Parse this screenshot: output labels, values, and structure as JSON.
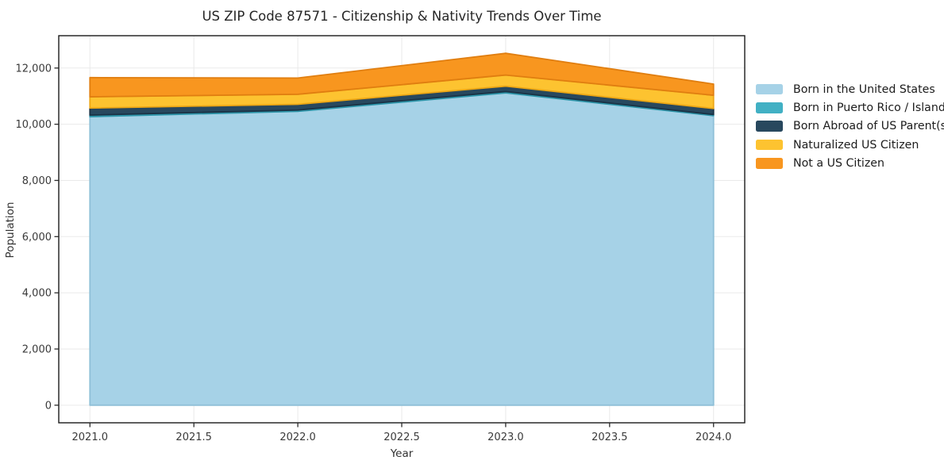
{
  "window": {
    "title": "US ZIP Code 87571 - Citizenship & Nativity Trends Over Time"
  },
  "chart_data": {
    "type": "area",
    "stacked": true,
    "title": "US ZIP Code 87571 - Citizenship & Nativity Trends Over Time",
    "xlabel": "Year",
    "ylabel": "Population",
    "x": [
      2021,
      2022,
      2023,
      2024
    ],
    "series": [
      {
        "name": "Born in the United States",
        "color": "#a6d2e7",
        "edge_color": "#8fc0d8",
        "values": [
          10270,
          10460,
          11115,
          10305
        ]
      },
      {
        "name": "Born in Puerto Rico / Islands",
        "color": "#41b0c4",
        "edge_color": "#2d95a9",
        "values": [
          55,
          45,
          50,
          40
        ]
      },
      {
        "name": "Born Abroad of US Parent(s)",
        "color": "#28485e",
        "edge_color": "#1a3245",
        "values": [
          250,
          205,
          190,
          215
        ]
      },
      {
        "name": "Naturalized US Citizen",
        "color": "#fdc330",
        "edge_color": "#eda714",
        "values": [
          400,
          355,
          395,
          470
        ]
      },
      {
        "name": "Not a US Citizen",
        "color": "#f8961f",
        "edge_color": "#e07e10",
        "values": [
          685,
          580,
          775,
          400
        ]
      }
    ],
    "totals": [
      11660,
      11645,
      12525,
      11430
    ],
    "xticks": {
      "values": [
        2021.0,
        2021.5,
        2022.0,
        2022.5,
        2023.0,
        2023.5,
        2024.0
      ],
      "labels": [
        "2021.0",
        "2021.5",
        "2022.0",
        "2022.5",
        "2023.0",
        "2023.5",
        "2024.0"
      ]
    },
    "yticks": {
      "values": [
        0,
        2000,
        4000,
        6000,
        8000,
        10000,
        12000
      ],
      "labels": [
        "0",
        "2,000",
        "4,000",
        "6,000",
        "8,000",
        "10,000",
        "12,000"
      ]
    },
    "xlim": [
      2020.85,
      2024.15
    ],
    "ylim": [
      -626,
      13151
    ],
    "grid": true,
    "legend_position": "right-outside",
    "colors": {
      "background": "#ffffff",
      "plot_background": "#ffffff",
      "grid": "#eaeaea",
      "spine": "#1a1a1a",
      "tick": "#2b2b2b",
      "title_text": "#262626",
      "tick_text": "#3a3a3a",
      "axis_label_text": "#333333"
    }
  }
}
